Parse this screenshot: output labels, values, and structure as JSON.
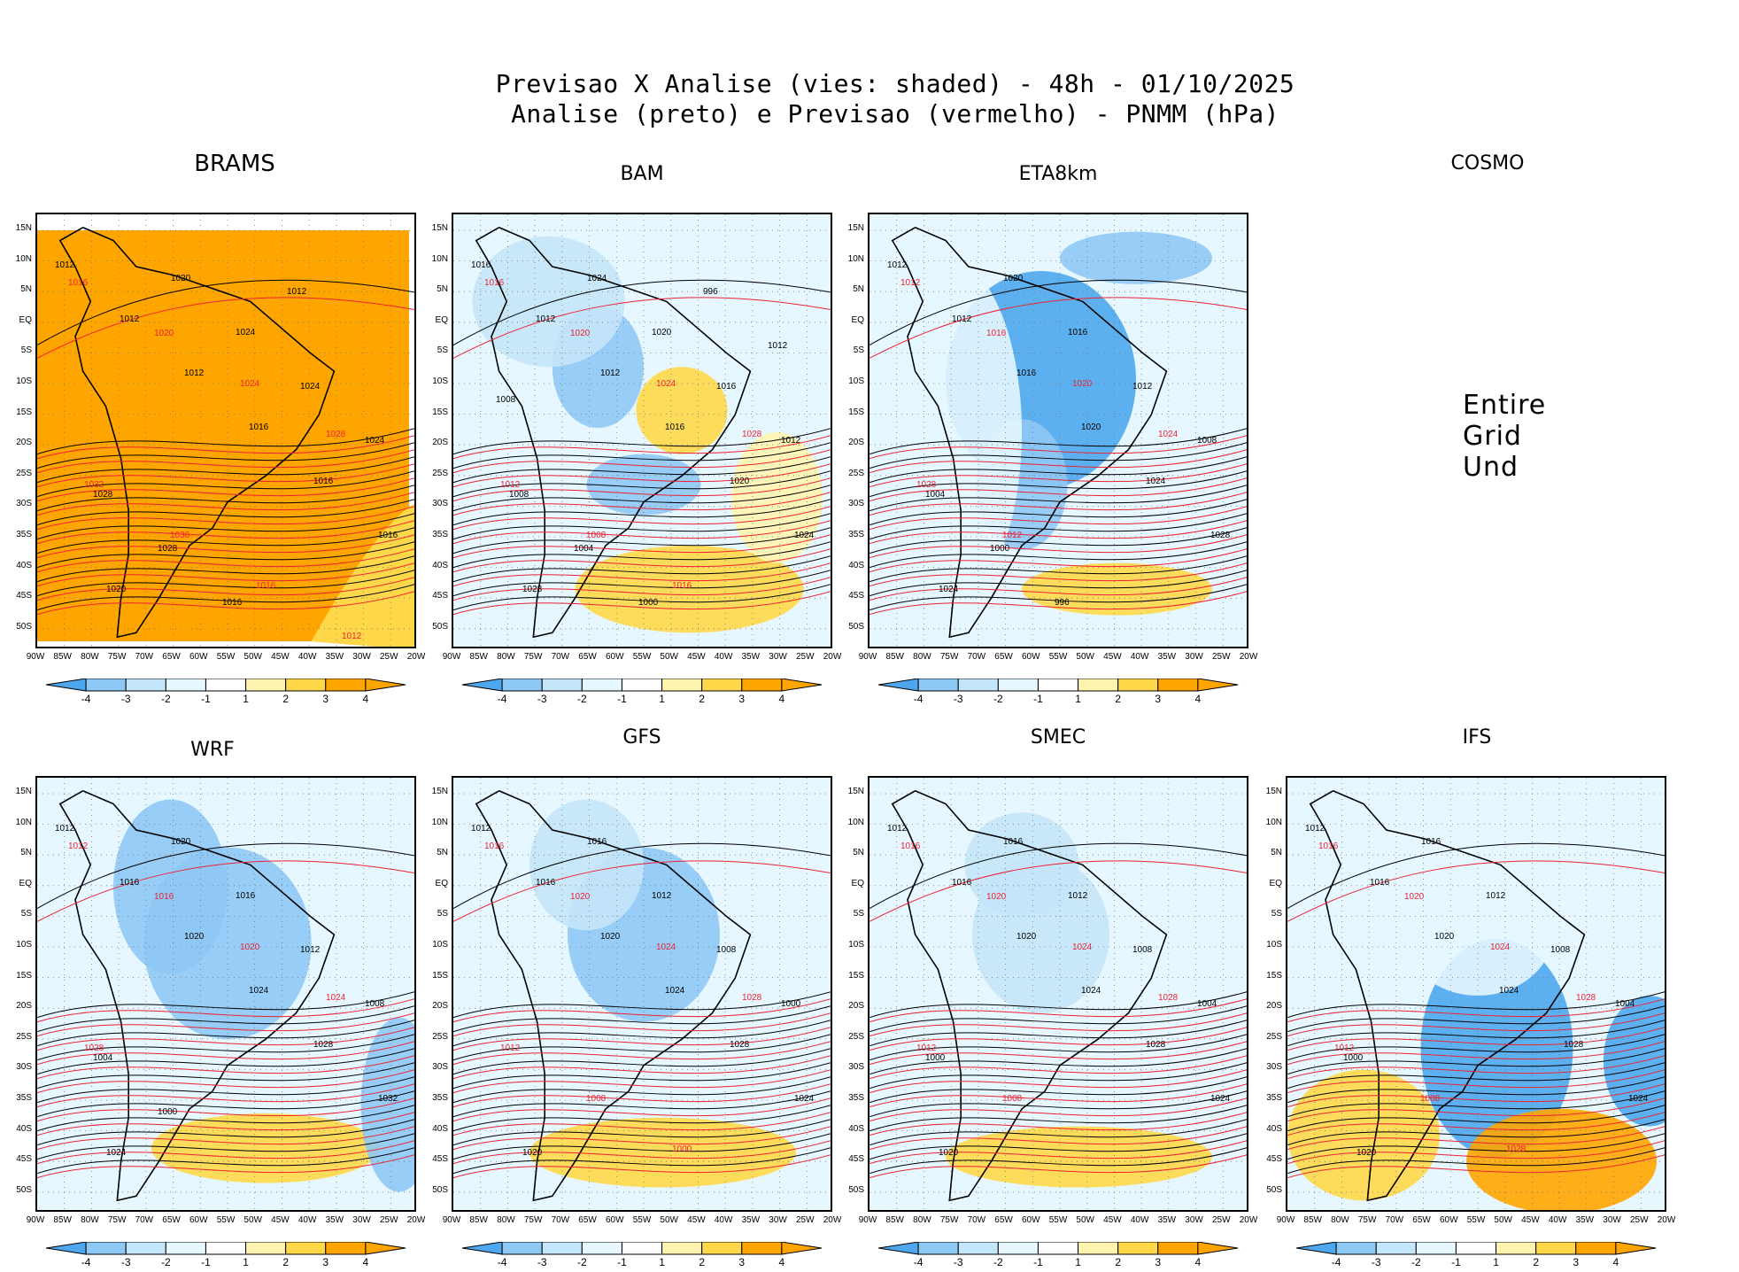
{
  "figure": {
    "title_line1": "Previsao X Analise (vies: shaded) - 48h - 01/10/2025",
    "title_line2": "Analise (preto) e Previsao (vermelho) - PNMM (hPa)"
  },
  "axes": {
    "lat_labels": [
      "15N",
      "10N",
      "5N",
      "EQ",
      "5S",
      "10S",
      "15S",
      "20S",
      "25S",
      "30S",
      "35S",
      "40S",
      "45S",
      "50S"
    ],
    "lon_labels": [
      "90W",
      "85W",
      "80W",
      "75W",
      "70W",
      "65W",
      "60W",
      "55W",
      "50W",
      "45W",
      "40W",
      "35W",
      "30W",
      "25W",
      "20W"
    ]
  },
  "colorbar": {
    "labels": [
      "-4",
      "-3",
      "-2",
      "-1",
      "1",
      "2",
      "3",
      "4"
    ],
    "colors": [
      "#4ea7ee",
      "#8ec8f5",
      "#c4e6fa",
      "#e6f7ff",
      "#ffffff",
      "#fff3b0",
      "#ffd84a",
      "#ffa500"
    ]
  },
  "panels": [
    {
      "id": "brams",
      "title": "BRAMS",
      "status": "",
      "contours_black": [
        "1012",
        "1012",
        "1012",
        "1016",
        "1016",
        "1016",
        "1020",
        "1020",
        "1024",
        "1024",
        "1024",
        "1028",
        "1028",
        "1016",
        "1012"
      ],
      "contours_red": [
        "1016",
        "1020",
        "1024",
        "1028",
        "1032",
        "1036",
        "1016",
        "1012"
      ]
    },
    {
      "id": "bam",
      "title": "BAM",
      "status": "",
      "contours_black": [
        "1016",
        "1012",
        "1012",
        "1016",
        "1020",
        "1024",
        "1028",
        "1024",
        "1020",
        "1016",
        "1012",
        "1008",
        "1004",
        "1000",
        "996",
        "1012",
        "1008"
      ],
      "contours_red": [
        "1016",
        "1020",
        "1024",
        "1028",
        "1012",
        "1008",
        "1016"
      ]
    },
    {
      "id": "eta8km",
      "title": "ETA8km",
      "status": "",
      "contours_black": [
        "1012",
        "1012",
        "1016",
        "1020",
        "1024",
        "1028",
        "1024",
        "1020",
        "1016",
        "1012",
        "1008",
        "1004",
        "1000",
        "996"
      ],
      "contours_red": [
        "1012",
        "1016",
        "1020",
        "1024",
        "1028",
        "1012"
      ]
    },
    {
      "id": "cosmo",
      "title": "COSMO",
      "status": "Entire Grid Und"
    },
    {
      "id": "wrf",
      "title": "WRF",
      "status": "",
      "contours_black": [
        "1012",
        "1016",
        "1020",
        "1024",
        "1028",
        "1032",
        "1024",
        "1020",
        "1016",
        "1012",
        "1008",
        "1004",
        "1000"
      ],
      "contours_red": [
        "1012",
        "1016",
        "1020",
        "1024",
        "1028"
      ]
    },
    {
      "id": "gfs",
      "title": "GFS",
      "status": "",
      "contours_black": [
        "1012",
        "1016",
        "1020",
        "1024",
        "1028",
        "1024",
        "1020",
        "1016",
        "1012",
        "1008",
        "1000"
      ],
      "contours_red": [
        "1016",
        "1020",
        "1024",
        "1028",
        "1012",
        "1008",
        "1000"
      ]
    },
    {
      "id": "smec",
      "title": "SMEC",
      "status": "",
      "contours_black": [
        "1012",
        "1016",
        "1020",
        "1024",
        "1028",
        "1024",
        "1020",
        "1016",
        "1012",
        "1008",
        "1004",
        "1000"
      ],
      "contours_red": [
        "1016",
        "1020",
        "1024",
        "1028",
        "1012",
        "1008"
      ]
    },
    {
      "id": "ifs",
      "title": "IFS",
      "status": "",
      "contours_black": [
        "1012",
        "1016",
        "1020",
        "1024",
        "1028",
        "1024",
        "1020",
        "1016",
        "1012",
        "1008",
        "1004",
        "1000"
      ],
      "contours_red": [
        "1016",
        "1020",
        "1024",
        "1028",
        "1012",
        "1008",
        "1028"
      ]
    }
  ]
}
